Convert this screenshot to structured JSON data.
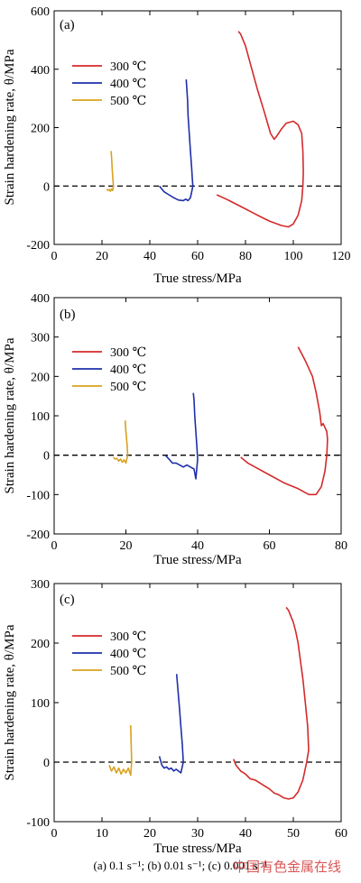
{
  "caption": "(a) 0.1 s⁻¹; (b) 0.01 s⁻¹; (c) 0.001 s⁻¹",
  "watermark": "中国有色金属在线",
  "chart_data": [
    {
      "type": "line",
      "panel_label": "(a)",
      "xlabel": "True stress/MPa",
      "ylabel": "Strain hardening rate, θ/MPa",
      "xlim": [
        0,
        120
      ],
      "ylim": [
        -200,
        600
      ],
      "xticks": [
        0,
        20,
        40,
        60,
        80,
        100,
        120
      ],
      "yticks": [
        -200,
        0,
        200,
        400,
        600
      ],
      "zero_line": true,
      "legend_position": "top-left",
      "series": [
        {
          "name": "300 ℃",
          "color": "#d42a2a",
          "x": [
            68,
            72,
            78,
            85,
            90,
            95,
            98,
            100,
            102,
            103.5,
            104,
            104.2,
            104,
            103.5,
            102,
            100,
            97,
            95,
            93,
            92,
            90.5,
            88,
            85,
            82,
            80,
            78,
            77
          ],
          "y": [
            -30,
            -45,
            -70,
            -100,
            -120,
            -135,
            -140,
            -130,
            -100,
            -50,
            0,
            50,
            120,
            180,
            210,
            222,
            215,
            195,
            170,
            160,
            180,
            250,
            330,
            420,
            480,
            520,
            530
          ]
        },
        {
          "name": "400 ℃",
          "color": "#1f2fa8",
          "x": [
            44,
            46,
            48,
            50,
            52,
            54,
            55,
            56,
            57,
            57.5,
            58,
            57.8,
            57.5,
            57,
            56.5,
            56,
            55.8,
            55.5,
            55.2
          ],
          "y": [
            0,
            -20,
            -30,
            -40,
            -48,
            -50,
            -45,
            -50,
            -40,
            -20,
            0,
            20,
            60,
            120,
            180,
            240,
            290,
            330,
            365
          ]
        },
        {
          "name": "500 ℃",
          "color": "#d8a21f",
          "x": [
            22,
            22.5,
            23,
            23.5,
            24,
            24.5,
            24.8,
            24.5,
            24.2,
            24,
            23.8
          ],
          "y": [
            -10,
            -15,
            -12,
            -18,
            -10,
            -15,
            0,
            30,
            70,
            100,
            120
          ]
        }
      ]
    },
    {
      "type": "line",
      "panel_label": "(b)",
      "xlabel": "True stress/MPa",
      "ylabel": "Strain hardening rate, θ/MPa",
      "xlim": [
        0,
        80
      ],
      "ylim": [
        -200,
        400
      ],
      "xticks": [
        0,
        20,
        40,
        60,
        80
      ],
      "yticks": [
        -200,
        -100,
        0,
        100,
        200,
        300,
        400
      ],
      "zero_line": true,
      "legend_position": "top-left",
      "series": [
        {
          "name": "300 ℃",
          "color": "#d42a2a",
          "x": [
            52,
            54,
            56,
            60,
            64,
            68,
            71,
            73,
            74.5,
            75.5,
            76,
            76.2,
            76,
            75.5,
            75,
            74.5,
            74,
            73,
            72,
            70,
            68
          ],
          "y": [
            -5,
            -20,
            -30,
            -50,
            -70,
            -85,
            -100,
            -100,
            -80,
            -40,
            0,
            40,
            60,
            70,
            80,
            75,
            110,
            160,
            200,
            240,
            275
          ]
        },
        {
          "name": "400 ℃",
          "color": "#1f2fa8",
          "x": [
            31,
            32,
            33,
            34,
            35,
            36,
            37,
            38,
            39,
            39.5,
            40,
            39.8,
            39.5,
            39.2,
            39,
            38.8
          ],
          "y": [
            0,
            -10,
            -20,
            -20,
            -25,
            -30,
            -25,
            -30,
            -35,
            -60,
            -10,
            20,
            60,
            100,
            140,
            158
          ]
        },
        {
          "name": "500 ℃",
          "color": "#d8a21f",
          "x": [
            16.5,
            17,
            17.5,
            18,
            18.5,
            19,
            19.5,
            20,
            20.5,
            20.3,
            20,
            19.8
          ],
          "y": [
            -5,
            -10,
            -8,
            -15,
            -10,
            -18,
            -12,
            -20,
            0,
            30,
            60,
            88
          ]
        }
      ]
    },
    {
      "type": "line",
      "panel_label": "(c)",
      "xlabel": "True stress/MPa",
      "ylabel": "Strain hardening rate, θ/MPa",
      "xlim": [
        0,
        60
      ],
      "ylim": [
        -100,
        300
      ],
      "xticks": [
        0,
        10,
        20,
        30,
        40,
        50,
        60
      ],
      "yticks": [
        -100,
        0,
        100,
        200,
        300
      ],
      "zero_line": true,
      "legend_position": "top-left",
      "series": [
        {
          "name": "300 ℃",
          "color": "#d42a2a",
          "x": [
            37.5,
            38,
            39,
            40,
            41,
            42,
            43,
            44,
            45,
            46,
            47,
            48,
            49,
            50,
            51,
            52,
            52.8,
            53.2,
            53,
            52.5,
            52,
            51.5,
            51,
            50.5,
            50,
            49.5,
            49,
            48.5
          ],
          "y": [
            5,
            -5,
            -15,
            -20,
            -28,
            -30,
            -35,
            -40,
            -45,
            -52,
            -55,
            -60,
            -62,
            -60,
            -50,
            -30,
            0,
            20,
            60,
            100,
            140,
            170,
            200,
            220,
            235,
            245,
            255,
            260
          ]
        },
        {
          "name": "400 ℃",
          "color": "#1f2fa8",
          "x": [
            22,
            22.5,
            23,
            23.5,
            24,
            24.5,
            25,
            25.5,
            26,
            26.5,
            27,
            26.8,
            26.5,
            26.2,
            26,
            25.8,
            25.6
          ],
          "y": [
            10,
            -5,
            -10,
            -8,
            -12,
            -10,
            -15,
            -12,
            -15,
            -18,
            0,
            30,
            60,
            90,
            110,
            130,
            148
          ]
        },
        {
          "name": "500 ℃",
          "color": "#d8a21f",
          "x": [
            11.5,
            12,
            12.5,
            13,
            13.5,
            14,
            14.5,
            15,
            15.5,
            16,
            16.2,
            16.1,
            16
          ],
          "y": [
            -5,
            -15,
            -8,
            -18,
            -10,
            -20,
            -12,
            -18,
            -10,
            -22,
            0,
            30,
            62
          ]
        }
      ]
    }
  ]
}
